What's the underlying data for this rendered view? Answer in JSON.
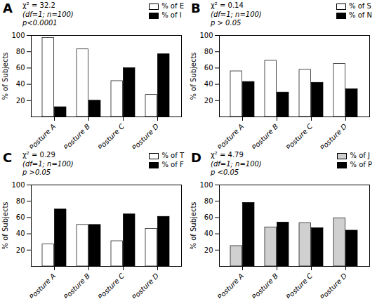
{
  "chart_data": [
    {
      "type": "bar",
      "title": "A",
      "annotations": [
        "χ² = 32.2",
        "(df=1; n=100)",
        "p<0.0001"
      ],
      "categories": [
        "Posture A",
        "Posture B",
        "Posture C",
        "Posture D"
      ],
      "series": [
        {
          "name": "% of E",
          "color": "white",
          "values": [
            97,
            83,
            44,
            27
          ]
        },
        {
          "name": "% of I",
          "color": "black",
          "values": [
            12,
            20,
            60,
            77
          ]
        }
      ],
      "ylabel": "% of Subjects",
      "ylim": [
        0,
        100
      ],
      "yticks": [
        20,
        40,
        60,
        80,
        100
      ],
      "legend": "upper right",
      "grid": false
    },
    {
      "type": "bar",
      "title": "B",
      "annotations": [
        "χ² = 0.14",
        "(df=1; n=100)",
        "p > 0.05"
      ],
      "categories": [
        "Posture A",
        "Posture B",
        "Posture C",
        "Posture D"
      ],
      "series": [
        {
          "name": "% of S",
          "color": "white",
          "values": [
            56,
            69,
            58,
            65
          ]
        },
        {
          "name": "% of N",
          "color": "black",
          "values": [
            43,
            30,
            42,
            34
          ]
        }
      ],
      "ylabel": "% of Subjects",
      "ylim": [
        0,
        100
      ],
      "yticks": [
        20,
        40,
        60,
        80,
        100
      ],
      "legend": "upper right",
      "grid": false
    },
    {
      "type": "bar",
      "title": "C",
      "annotations": [
        "χ² = 0.29",
        "(df=1; n=100)",
        "p >0.05"
      ],
      "categories": [
        "Posture A",
        "Posture B",
        "Posture C",
        "Posture D"
      ],
      "series": [
        {
          "name": "% of T",
          "color": "white",
          "values": [
            27,
            51,
            31,
            46
          ]
        },
        {
          "name": "% of F",
          "color": "black",
          "values": [
            70,
            51,
            64,
            61
          ]
        }
      ],
      "ylabel": "% of Subjects",
      "ylim": [
        0,
        100
      ],
      "yticks": [
        20,
        40,
        60,
        80,
        100
      ],
      "legend": "upper right",
      "grid": false
    },
    {
      "type": "bar",
      "title": "D",
      "annotations": [
        "χ² = 4.79",
        "(df=1; n=100)",
        "p <0.05"
      ],
      "categories": [
        "Posture A",
        "Posture B",
        "Posture C",
        "Posture D"
      ],
      "series": [
        {
          "name": "% of J",
          "color": "#d0d0d0",
          "values": [
            25,
            48,
            53,
            59
          ]
        },
        {
          "name": "% of P",
          "color": "black",
          "values": [
            78,
            54,
            47,
            44
          ]
        }
      ],
      "ylabel": "% of Subjects",
      "ylim": [
        0,
        100
      ],
      "yticks": [
        20,
        40,
        60,
        80,
        100
      ],
      "legend": "upper right",
      "grid": false
    }
  ]
}
